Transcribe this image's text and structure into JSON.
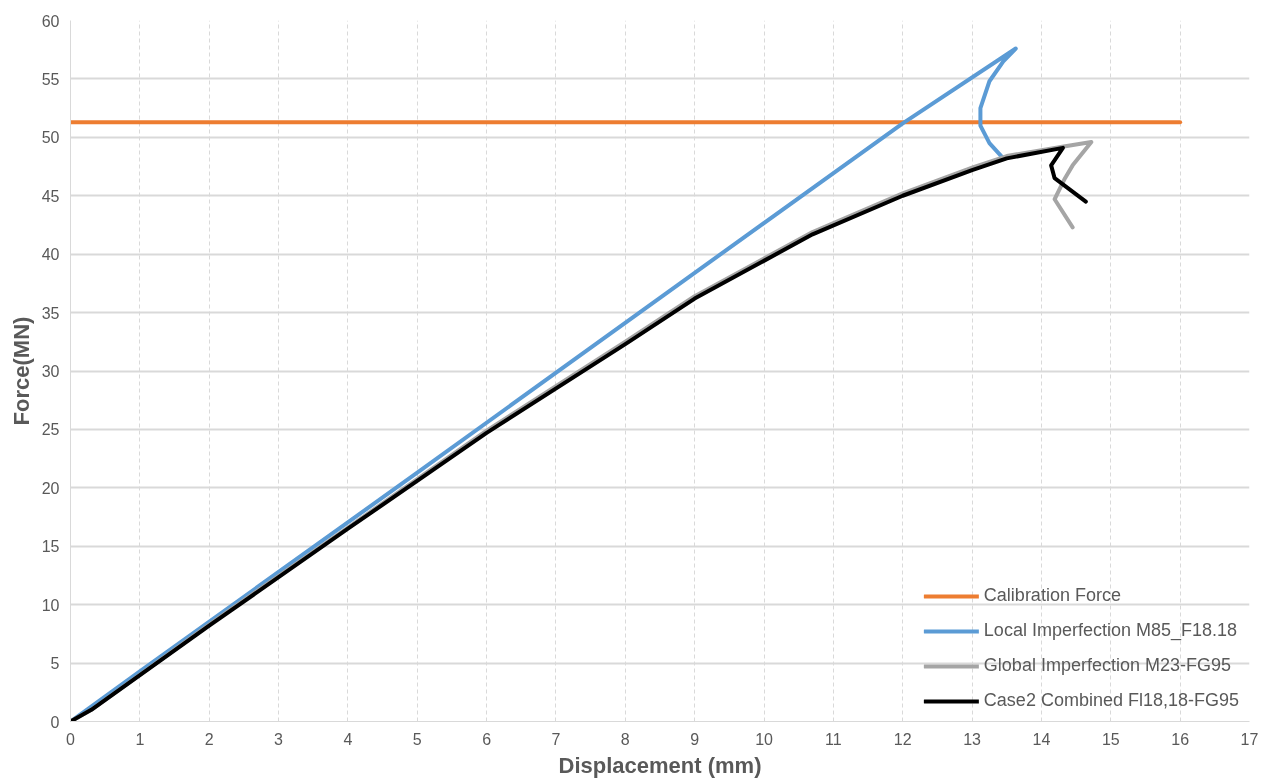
{
  "chart_data": {
    "type": "line",
    "xlabel": "Displacement (mm)",
    "ylabel": "Force(MN)",
    "xlim": [
      0,
      17
    ],
    "xticks": [
      0,
      1,
      2,
      3,
      4,
      5,
      6,
      7,
      8,
      9,
      10,
      11,
      12,
      13,
      14,
      15,
      16,
      17
    ],
    "ylim": [
      0,
      60
    ],
    "yticks": [
      0,
      5,
      10,
      15,
      20,
      25,
      30,
      35,
      40,
      45,
      50,
      55,
      60
    ],
    "grid": true,
    "legend": "bottom right",
    "marker": "none",
    "line_style": "solid",
    "series": [
      {
        "name": "Calibration Force",
        "color": "#ed7d31",
        "x": [
          0,
          16
        ],
        "values": [
          51.3,
          51.3
        ]
      },
      {
        "name": "Local Imperfection M85_F18.18",
        "color": "#5b9bd5",
        "x": [
          0,
          1,
          5,
          9,
          12,
          13.63,
          13.45,
          13.25,
          13.12,
          13.12,
          13.25,
          13.45
        ],
        "values": [
          0,
          4.3,
          21.3,
          38.4,
          51.2,
          57.6,
          56.5,
          54.8,
          52.5,
          51,
          49.5,
          48.2
        ]
      },
      {
        "name": "Global Imperfection M23-FG95",
        "color": "#a5a5a5",
        "x": [
          0,
          0.3,
          2,
          4,
          6,
          8,
          9,
          10.7,
          12,
          13,
          13.5,
          14.3,
          14.72,
          14.45,
          14.34,
          14.19,
          14.45
        ],
        "values": [
          0,
          1,
          8.3,
          16.6,
          24.9,
          32.5,
          36.4,
          41.9,
          45.2,
          47.4,
          48.4,
          49.2,
          49.6,
          47.6,
          46.5,
          44.7,
          42.3
        ]
      },
      {
        "name": "Case2 Combined Fl18,18-FG95",
        "color": "#000000",
        "x": [
          0,
          0.3,
          2,
          4,
          6,
          8,
          9,
          10.7,
          12,
          13,
          13.5,
          14.31,
          14.14,
          14.19,
          14.64
        ],
        "values": [
          0,
          1,
          8.2,
          16.5,
          24.7,
          32.3,
          36.2,
          41.7,
          45,
          47.2,
          48.2,
          49.1,
          47.6,
          46.5,
          44.5
        ]
      }
    ]
  }
}
